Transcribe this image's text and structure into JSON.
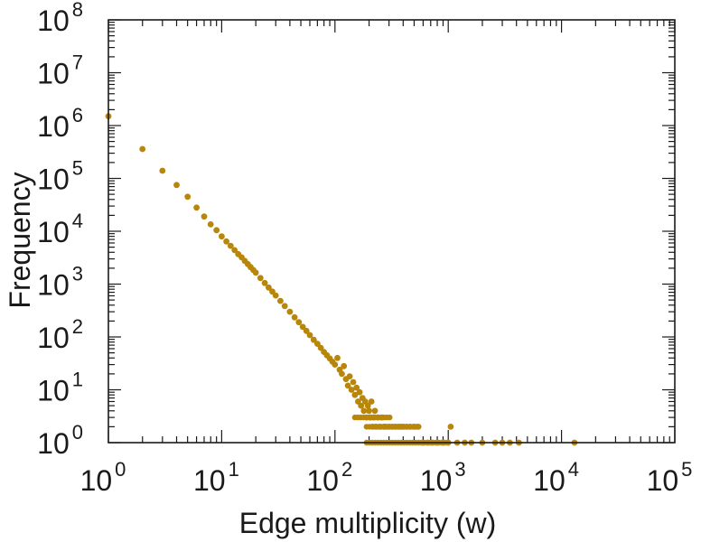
{
  "colors": {
    "marker": "#b8860b",
    "axis": "#1a1a1a",
    "background": "#ffffff"
  },
  "chart_data": {
    "type": "scatter",
    "title": "",
    "xlabel": "Edge multiplicity (w)",
    "ylabel": "Frequency",
    "xscale": "log",
    "yscale": "log",
    "xlim": [
      1,
      100000
    ],
    "ylim": [
      1,
      100000000
    ],
    "grid": false,
    "legend": "none",
    "x_ticks": [
      {
        "base": "10",
        "exp": "0"
      },
      {
        "base": "10",
        "exp": "1"
      },
      {
        "base": "10",
        "exp": "2"
      },
      {
        "base": "10",
        "exp": "3"
      },
      {
        "base": "10",
        "exp": "4"
      },
      {
        "base": "10",
        "exp": "5"
      }
    ],
    "y_ticks": [
      {
        "base": "10",
        "exp": "0"
      },
      {
        "base": "10",
        "exp": "1"
      },
      {
        "base": "10",
        "exp": "2"
      },
      {
        "base": "10",
        "exp": "3"
      },
      {
        "base": "10",
        "exp": "4"
      },
      {
        "base": "10",
        "exp": "5"
      },
      {
        "base": "10",
        "exp": "6"
      },
      {
        "base": "10",
        "exp": "7"
      },
      {
        "base": "10",
        "exp": "8"
      }
    ],
    "points": [
      {
        "x": 1,
        "y": 1500000
      },
      {
        "x": 2,
        "y": 360000
      },
      {
        "x": 3,
        "y": 140000
      },
      {
        "x": 4,
        "y": 75000
      },
      {
        "x": 5,
        "y": 45000
      },
      {
        "x": 6,
        "y": 28000
      },
      {
        "x": 7,
        "y": 19000
      },
      {
        "x": 8,
        "y": 13500
      },
      {
        "x": 9,
        "y": 10500
      },
      {
        "x": 10,
        "y": 8000
      },
      {
        "x": 11,
        "y": 6400
      },
      {
        "x": 12,
        "y": 5300
      },
      {
        "x": 13,
        "y": 4400
      },
      {
        "x": 14,
        "y": 3700
      },
      {
        "x": 15,
        "y": 3200
      },
      {
        "x": 16,
        "y": 2750
      },
      {
        "x": 17,
        "y": 2400
      },
      {
        "x": 18,
        "y": 2100
      },
      {
        "x": 19,
        "y": 1850
      },
      {
        "x": 20,
        "y": 1650
      },
      {
        "x": 22,
        "y": 1300
      },
      {
        "x": 24,
        "y": 1050
      },
      {
        "x": 26,
        "y": 860
      },
      {
        "x": 28,
        "y": 720
      },
      {
        "x": 30,
        "y": 610
      },
      {
        "x": 33,
        "y": 480
      },
      {
        "x": 36,
        "y": 385
      },
      {
        "x": 40,
        "y": 300
      },
      {
        "x": 44,
        "y": 235
      },
      {
        "x": 48,
        "y": 190
      },
      {
        "x": 52,
        "y": 155
      },
      {
        "x": 56,
        "y": 130
      },
      {
        "x": 60,
        "y": 108
      },
      {
        "x": 65,
        "y": 88
      },
      {
        "x": 70,
        "y": 74
      },
      {
        "x": 75,
        "y": 62
      },
      {
        "x": 80,
        "y": 52
      },
      {
        "x": 85,
        "y": 45
      },
      {
        "x": 90,
        "y": 39
      },
      {
        "x": 95,
        "y": 34
      },
      {
        "x": 100,
        "y": 30
      },
      {
        "x": 105,
        "y": 40
      },
      {
        "x": 110,
        "y": 24
      },
      {
        "x": 115,
        "y": 20
      },
      {
        "x": 120,
        "y": 28
      },
      {
        "x": 125,
        "y": 16
      },
      {
        "x": 130,
        "y": 12
      },
      {
        "x": 135,
        "y": 18
      },
      {
        "x": 140,
        "y": 10
      },
      {
        "x": 145,
        "y": 14
      },
      {
        "x": 150,
        "y": 8
      },
      {
        "x": 155,
        "y": 11
      },
      {
        "x": 160,
        "y": 6
      },
      {
        "x": 165,
        "y": 9
      },
      {
        "x": 170,
        "y": 5
      },
      {
        "x": 175,
        "y": 7
      },
      {
        "x": 180,
        "y": 4
      },
      {
        "x": 185,
        "y": 6
      },
      {
        "x": 190,
        "y": 3
      },
      {
        "x": 195,
        "y": 5
      },
      {
        "x": 200,
        "y": 4
      },
      {
        "x": 205,
        "y": 3
      },
      {
        "x": 210,
        "y": 6
      },
      {
        "x": 215,
        "y": 2
      },
      {
        "x": 220,
        "y": 3
      },
      {
        "x": 225,
        "y": 4
      },
      {
        "x": 230,
        "y": 2
      },
      {
        "x": 240,
        "y": 3
      },
      {
        "x": 250,
        "y": 2
      },
      {
        "x": 260,
        "y": 3
      },
      {
        "x": 270,
        "y": 2
      },
      {
        "x": 280,
        "y": 2
      },
      {
        "x": 300,
        "y": 2
      },
      {
        "x": 320,
        "y": 2
      },
      {
        "x": 340,
        "y": 2
      },
      {
        "x": 360,
        "y": 2
      },
      {
        "x": 380,
        "y": 2
      },
      {
        "x": 400,
        "y": 2
      },
      {
        "x": 430,
        "y": 2
      },
      {
        "x": 460,
        "y": 2
      },
      {
        "x": 500,
        "y": 2
      },
      {
        "x": 540,
        "y": 2
      },
      {
        "x": 600,
        "y": 1
      },
      {
        "x": 660,
        "y": 1
      },
      {
        "x": 720,
        "y": 1
      },
      {
        "x": 800,
        "y": 1
      },
      {
        "x": 900,
        "y": 1
      },
      {
        "x": 1000,
        "y": 1
      },
      {
        "x": 1050,
        "y": 2
      },
      {
        "x": 1200,
        "y": 1
      },
      {
        "x": 1400,
        "y": 1
      },
      {
        "x": 1600,
        "y": 1
      },
      {
        "x": 2000,
        "y": 1
      },
      {
        "x": 2600,
        "y": 1
      },
      {
        "x": 3000,
        "y": 1
      },
      {
        "x": 3500,
        "y": 1
      },
      {
        "x": 4200,
        "y": 1
      },
      {
        "x": 13000,
        "y": 1
      }
    ],
    "dense_bands": [
      {
        "y": 1,
        "x_from": 190,
        "x_to": 1000
      },
      {
        "y": 2,
        "x_from": 190,
        "x_to": 560
      },
      {
        "y": 3,
        "x_from": 150,
        "x_to": 320
      }
    ]
  }
}
